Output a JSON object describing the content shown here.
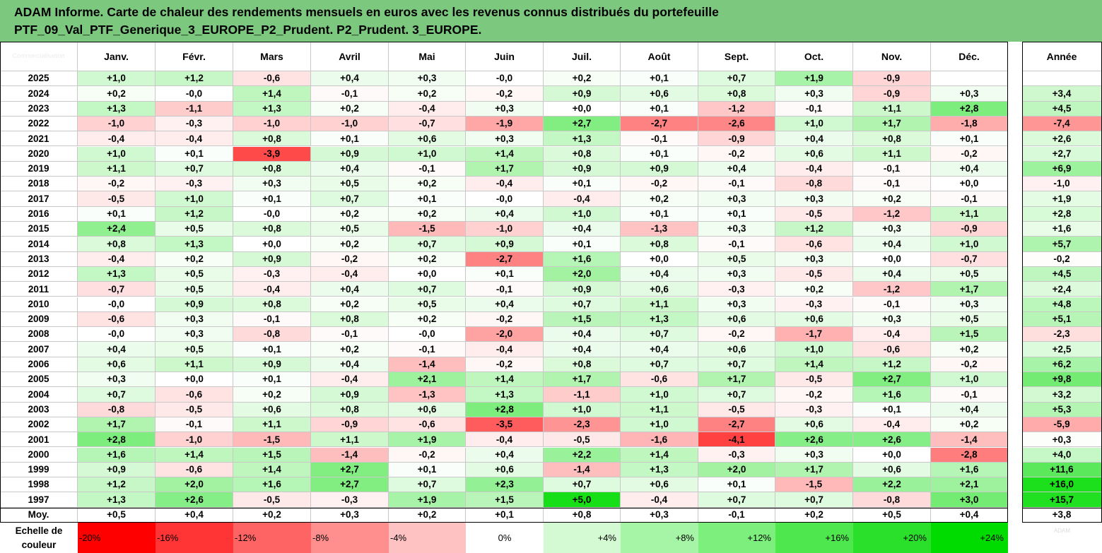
{
  "title": {
    "line1": "ADAM Informe. Carte de chaleur des rendements mensuels en euros avec les revenus connus distribués du portefeuille",
    "line2": "PTF_09_Val_PTF_Generique_3_EUROPE_P2_Prudent. P2_Prudent. 3_EUROPE."
  },
  "chart_data": {
    "type": "heatmap",
    "title": "ADAM Informe. Carte de chaleur des rendements mensuels en euros avec les revenus connus distribués du portefeuille PTF_09_Val_PTF_Generique_3_EUROPE_P2_Prudent. P2_Prudent. 3_EUROPE.",
    "corner_label": "Commercialisation",
    "columns": [
      "Janv.",
      "Févr.",
      "Mars",
      "Avril",
      "Mai",
      "Juin",
      "Juil.",
      "Août",
      "Sept.",
      "Oct.",
      "Nov.",
      "Déc."
    ],
    "year_column": "Année",
    "rows": [
      {
        "label": "2025",
        "months": [
          "+1,0",
          "+1,2",
          "-0,6",
          "+0,4",
          "+0,3",
          "-0,0",
          "+0,2",
          "+0,1",
          "+0,7",
          "+1,9",
          "-0,9",
          ""
        ],
        "year": ""
      },
      {
        "label": "2024",
        "months": [
          "+0,2",
          "-0,0",
          "+1,4",
          "-0,1",
          "+0,2",
          "-0,2",
          "+0,9",
          "+0,6",
          "+0,8",
          "+0,3",
          "-0,9",
          "+0,3"
        ],
        "year": "+3,4"
      },
      {
        "label": "2023",
        "months": [
          "+1,3",
          "-1,1",
          "+1,3",
          "+0,2",
          "-0,4",
          "+0,3",
          "+0,0",
          "+0,1",
          "-1,2",
          "-0,1",
          "+1,1",
          "+2,8"
        ],
        "year": "+4,5"
      },
      {
        "label": "2022",
        "months": [
          "-1,0",
          "-0,3",
          "-1,0",
          "-1,0",
          "-0,7",
          "-1,9",
          "+2,7",
          "-2,7",
          "-2,6",
          "+1,0",
          "+1,7",
          "-1,8"
        ],
        "year": "-7,4"
      },
      {
        "label": "2021",
        "months": [
          "-0,4",
          "-0,4",
          "+0,8",
          "+0,1",
          "+0,6",
          "+0,3",
          "+1,3",
          "-0,1",
          "-0,9",
          "+0,4",
          "+0,8",
          "+0,1"
        ],
        "year": "+2,6"
      },
      {
        "label": "2020",
        "months": [
          "+1,0",
          "+0,1",
          "-3,9",
          "+0,9",
          "+1,0",
          "+1,4",
          "+0,8",
          "+0,1",
          "-0,2",
          "+0,6",
          "+1,1",
          "-0,2"
        ],
        "year": "+2,7"
      },
      {
        "label": "2019",
        "months": [
          "+1,1",
          "+0,7",
          "+0,8",
          "+0,4",
          "-0,1",
          "+1,7",
          "+0,9",
          "+0,9",
          "+0,4",
          "-0,4",
          "-0,1",
          "+0,4"
        ],
        "year": "+6,9"
      },
      {
        "label": "2018",
        "months": [
          "-0,2",
          "-0,3",
          "+0,3",
          "+0,5",
          "+0,2",
          "-0,4",
          "+0,1",
          "-0,2",
          "-0,1",
          "-0,8",
          "-0,1",
          "+0,0"
        ],
        "year": "-1,0"
      },
      {
        "label": "2017",
        "months": [
          "-0,5",
          "+1,0",
          "+0,1",
          "+0,7",
          "+0,1",
          "-0,0",
          "-0,4",
          "+0,2",
          "+0,3",
          "+0,3",
          "+0,2",
          "-0,1"
        ],
        "year": "+1,9"
      },
      {
        "label": "2016",
        "months": [
          "+0,1",
          "+1,2",
          "-0,0",
          "+0,2",
          "+0,2",
          "+0,4",
          "+1,0",
          "+0,1",
          "+0,1",
          "-0,5",
          "-1,2",
          "+1,1"
        ],
        "year": "+2,8"
      },
      {
        "label": "2015",
        "months": [
          "+2,4",
          "+0,5",
          "+0,8",
          "+0,5",
          "-1,5",
          "-1,0",
          "+0,4",
          "-1,3",
          "+0,3",
          "+1,2",
          "+0,3",
          "-0,9"
        ],
        "year": "+1,6"
      },
      {
        "label": "2014",
        "months": [
          "+0,8",
          "+1,3",
          "+0,0",
          "+0,2",
          "+0,7",
          "+0,9",
          "+0,1",
          "+0,8",
          "-0,1",
          "-0,6",
          "+0,4",
          "+1,0"
        ],
        "year": "+5,7"
      },
      {
        "label": "2013",
        "months": [
          "-0,4",
          "+0,2",
          "+0,9",
          "-0,2",
          "+0,2",
          "-2,7",
          "+1,6",
          "+0,0",
          "+0,5",
          "+0,3",
          "+0,0",
          "-0,7"
        ],
        "year": "-0,2"
      },
      {
        "label": "2012",
        "months": [
          "+1,3",
          "+0,5",
          "-0,3",
          "-0,4",
          "+0,0",
          "+0,1",
          "+2,0",
          "+0,4",
          "+0,3",
          "-0,5",
          "+0,4",
          "+0,5"
        ],
        "year": "+4,5"
      },
      {
        "label": "2011",
        "months": [
          "-0,7",
          "+0,5",
          "-0,4",
          "+0,4",
          "+0,7",
          "-0,1",
          "+0,9",
          "+0,6",
          "-0,3",
          "+0,2",
          "-1,2",
          "+1,7"
        ],
        "year": "+2,4"
      },
      {
        "label": "2010",
        "months": [
          "-0,0",
          "+0,9",
          "+0,8",
          "+0,2",
          "+0,5",
          "+0,4",
          "+0,7",
          "+1,1",
          "+0,3",
          "-0,3",
          "-0,1",
          "+0,3"
        ],
        "year": "+4,8"
      },
      {
        "label": "2009",
        "months": [
          "-0,6",
          "+0,3",
          "-0,1",
          "+0,8",
          "+0,2",
          "-0,2",
          "+1,5",
          "+1,3",
          "+0,6",
          "+0,6",
          "+0,3",
          "+0,5"
        ],
        "year": "+5,1"
      },
      {
        "label": "2008",
        "months": [
          "-0,0",
          "+0,3",
          "-0,8",
          "-0,1",
          "-0,0",
          "-2,0",
          "+0,4",
          "+0,7",
          "-0,2",
          "-1,7",
          "-0,4",
          "+1,5"
        ],
        "year": "-2,3"
      },
      {
        "label": "2007",
        "months": [
          "+0,4",
          "+0,5",
          "+0,1",
          "+0,2",
          "-0,1",
          "-0,4",
          "+0,4",
          "+0,4",
          "+0,6",
          "+1,0",
          "-0,6",
          "+0,2"
        ],
        "year": "+2,5"
      },
      {
        "label": "2006",
        "months": [
          "+0,6",
          "+1,1",
          "+0,9",
          "+0,4",
          "-1,4",
          "-0,2",
          "+0,8",
          "+0,7",
          "+0,7",
          "+1,4",
          "+1,2",
          "-0,2"
        ],
        "year": "+6,2"
      },
      {
        "label": "2005",
        "months": [
          "+0,3",
          "+0,0",
          "+0,1",
          "-0,4",
          "+2,1",
          "+1,4",
          "+1,7",
          "-0,6",
          "+1,7",
          "-0,5",
          "+2,7",
          "+1,0"
        ],
        "year": "+9,8"
      },
      {
        "label": "2004",
        "months": [
          "+0,7",
          "-0,6",
          "+0,2",
          "+0,9",
          "-1,3",
          "+1,3",
          "-1,1",
          "+1,0",
          "+0,7",
          "-0,2",
          "+1,6",
          "-0,1"
        ],
        "year": "+3,2"
      },
      {
        "label": "2003",
        "months": [
          "-0,8",
          "-0,5",
          "+0,6",
          "+0,8",
          "+0,6",
          "+2,8",
          "+1,0",
          "+1,1",
          "-0,5",
          "-0,3",
          "+0,1",
          "+0,4"
        ],
        "year": "+5,3"
      },
      {
        "label": "2002",
        "months": [
          "+1,7",
          "-0,1",
          "+1,1",
          "-0,9",
          "-0,6",
          "-3,5",
          "-2,3",
          "+1,0",
          "-2,7",
          "+0,6",
          "-0,4",
          "+0,2"
        ],
        "year": "-5,9"
      },
      {
        "label": "2001",
        "months": [
          "+2,8",
          "-1,0",
          "-1,5",
          "+1,1",
          "+1,9",
          "-0,4",
          "-0,5",
          "-1,6",
          "-4,1",
          "+2,6",
          "+2,6",
          "-1,4"
        ],
        "year": "+0,3"
      },
      {
        "label": "2000",
        "months": [
          "+1,6",
          "+1,4",
          "+1,5",
          "-1,4",
          "-0,2",
          "+0,4",
          "+2,2",
          "+1,4",
          "-0,3",
          "+0,3",
          "+0,0",
          "-2,8"
        ],
        "year": "+4,0"
      },
      {
        "label": "1999",
        "months": [
          "+0,9",
          "-0,6",
          "+1,4",
          "+2,7",
          "+0,1",
          "+0,6",
          "-1,4",
          "+1,3",
          "+2,0",
          "+1,7",
          "+0,6",
          "+1,6"
        ],
        "year": "+11,6"
      },
      {
        "label": "1998",
        "months": [
          "+1,2",
          "+2,0",
          "+1,6",
          "+2,7",
          "+0,7",
          "+2,3",
          "+0,7",
          "+0,6",
          "+0,1",
          "-1,5",
          "+2,2",
          "+2,1"
        ],
        "year": "+16,0"
      },
      {
        "label": "1997",
        "months": [
          "+1,3",
          "+2,6",
          "-0,5",
          "-0,3",
          "+1,9",
          "+1,5",
          "+5,0",
          "-0,4",
          "+0,7",
          "+0,7",
          "-0,8",
          "+3,0"
        ],
        "year": "+15,7"
      }
    ],
    "average": {
      "label": "Moy.",
      "months": [
        "+0,5",
        "+0,4",
        "+0,2",
        "+0,3",
        "+0,2",
        "+0,1",
        "+0,8",
        "+0,3",
        "-0,1",
        "+0,2",
        "+0,5",
        "+0,4"
      ],
      "year": "+3,8"
    },
    "color_scale": {
      "label_line1": "Echelle de",
      "label_line2": "couleur",
      "stops": [
        "-20%",
        "-16%",
        "-12%",
        "-8%",
        "-4%",
        "0%",
        "+4%",
        "+8%",
        "+12%",
        "+16%",
        "+20%",
        "+24%"
      ],
      "stop_colors": [
        "#ff0000",
        "#ff3535",
        "#ff6464",
        "#ff8f8f",
        "#ffc2c2",
        "#ffffff",
        "#d4fad4",
        "#a6f5a6",
        "#7cef7c",
        "#4ee84e",
        "#2ae02a",
        "#00dc00"
      ],
      "watermark": "ADAM"
    },
    "colors": {
      "title_bg": "#7dc87f",
      "negative": "#ff0000",
      "positive": "#00dc00",
      "neutral": "#ffffff"
    }
  }
}
